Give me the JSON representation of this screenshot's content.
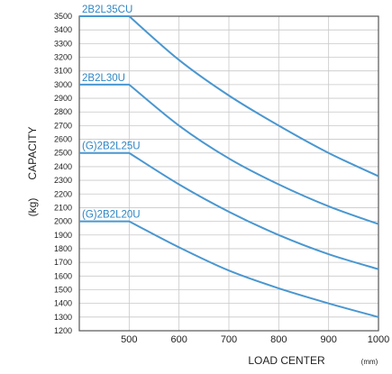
{
  "chart_data": {
    "type": "line",
    "xlabel": "LOAD CENTER",
    "xunit": "(mm)",
    "ylabel": "CAPACITY",
    "yunit": "(kg)",
    "xlim": [
      400,
      1000
    ],
    "ylim": [
      1200,
      3500
    ],
    "xticks": [
      "500",
      "600",
      "700",
      "800",
      "900",
      "1000"
    ],
    "yticks": [
      "1200",
      "1300",
      "1400",
      "1500",
      "1600",
      "1700",
      "1800",
      "1900",
      "2000",
      "2100",
      "2200",
      "2300",
      "2400",
      "2500",
      "2600",
      "2700",
      "2800",
      "2900",
      "3000",
      "3100",
      "3200",
      "3300",
      "3400",
      "3500"
    ],
    "grid": true,
    "line_color": "#4a97d0",
    "series": [
      {
        "name": "2B2L35CU",
        "x": [
          400,
          500,
          600,
          700,
          800,
          900,
          1000
        ],
        "y": [
          3500,
          3500,
          3180,
          2920,
          2700,
          2500,
          2330
        ]
      },
      {
        "name": "2B2L30U",
        "x": [
          400,
          500,
          600,
          700,
          800,
          900,
          1000
        ],
        "y": [
          3000,
          3000,
          2700,
          2460,
          2270,
          2110,
          1980
        ]
      },
      {
        "name": "(G)2B2L25U",
        "x": [
          400,
          500,
          600,
          700,
          800,
          900,
          1000
        ],
        "y": [
          2500,
          2500,
          2270,
          2070,
          1900,
          1760,
          1650
        ]
      },
      {
        "name": "(G)2B2L20U",
        "x": [
          400,
          500,
          600,
          700,
          800,
          900,
          1000
        ],
        "y": [
          2000,
          2000,
          1810,
          1640,
          1510,
          1400,
          1300
        ]
      }
    ]
  }
}
